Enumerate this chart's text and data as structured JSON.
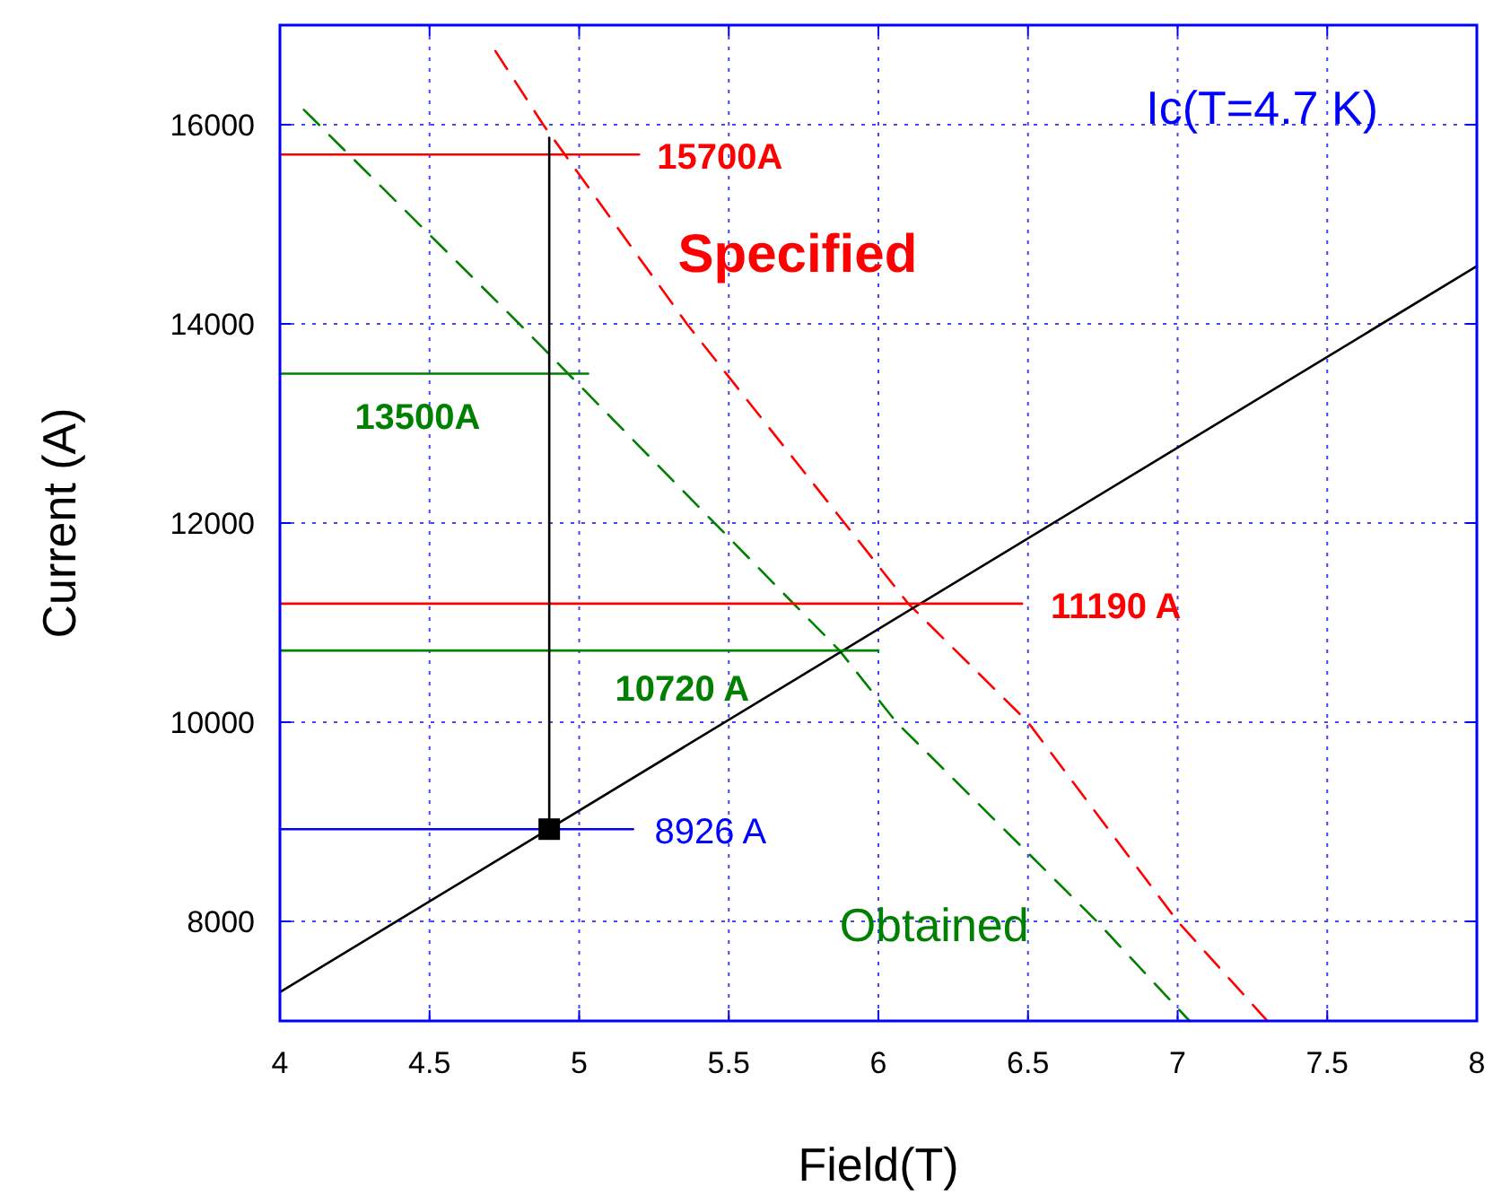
{
  "chart_data": {
    "type": "line",
    "xlabel": "Field(T)",
    "ylabel": "Current (A)",
    "xlim": [
      4,
      8
    ],
    "ylim": [
      7000,
      17000
    ],
    "xticks": [
      4,
      4.5,
      5,
      5.5,
      6,
      6.5,
      7,
      7.5,
      8
    ],
    "yticks": [
      8000,
      10000,
      12000,
      14000,
      16000
    ],
    "grid": true,
    "annotations": [
      "Ic(T=4.7 K)"
    ],
    "series": [
      {
        "name": "Specified",
        "color": "#ff0000",
        "line_style": "dashed",
        "x": [
          4.72,
          4.88,
          5.36,
          6.1,
          6.5,
          7.0,
          7.3
        ],
        "values": [
          16740,
          16000,
          14000,
          11190,
          10000,
          8000,
          7000
        ]
      },
      {
        "name": "Obtained",
        "color": "#008000",
        "line_style": "dashed",
        "x": [
          4.08,
          4.8,
          5.87,
          6.06,
          6.73,
          7.04
        ],
        "values": [
          16150,
          14000,
          10720,
          10000,
          8000,
          7000
        ]
      },
      {
        "color": "#000000",
        "x": [
          4,
          8
        ],
        "values": [
          7290,
          14580
        ]
      },
      {
        "name": "15700A",
        "color": "#ff0000",
        "x": [
          4,
          5.2
        ],
        "values": [
          15700,
          15700
        ]
      },
      {
        "name": "13500A",
        "color": "#008000",
        "x": [
          4,
          5.03
        ],
        "values": [
          13500,
          13500
        ]
      },
      {
        "name": "11190 A",
        "color": "#ff0000",
        "x": [
          4,
          6.48
        ],
        "values": [
          11190,
          11190
        ]
      },
      {
        "name": "10720 A",
        "color": "#008000",
        "x": [
          4,
          6.0
        ],
        "values": [
          10720,
          10720
        ]
      },
      {
        "name": "8926 A",
        "color": "#0000ff",
        "x": [
          4,
          5.18
        ],
        "values": [
          8926,
          8926
        ]
      },
      {
        "color": "#000000",
        "x": [
          4.9,
          4.9
        ],
        "values": [
          8926,
          15870
        ]
      },
      {
        "type": "scatter",
        "marker": "square",
        "color": "#000000",
        "x": [
          4.9
        ],
        "values": [
          8926
        ]
      }
    ]
  }
}
